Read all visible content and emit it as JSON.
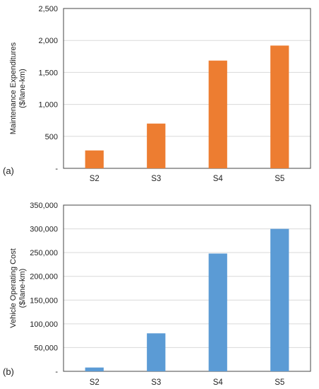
{
  "chart_data": [
    {
      "type": "bar",
      "panel_label": "(a)",
      "categories": [
        "S2",
        "S3",
        "S4",
        "S5"
      ],
      "values": [
        280,
        700,
        1685,
        1920
      ],
      "ylabel_line1": "Maintenance Expenditures",
      "ylabel_line2": "($/lane-km)",
      "ylim": [
        0,
        2500
      ],
      "yticks": [
        0,
        500,
        1000,
        1500,
        2000,
        2500
      ],
      "ytick_labels": [
        "-",
        "500",
        "1,000",
        "1,500",
        "2,000",
        "2,500"
      ],
      "grid": true,
      "bar_color": "#ED7D31"
    },
    {
      "type": "bar",
      "panel_label": "(b)",
      "categories": [
        "S2",
        "S3",
        "S4",
        "S5"
      ],
      "values": [
        8000,
        80000,
        248000,
        300000
      ],
      "ylabel_line1": "Vehicle Operating Cost",
      "ylabel_line2": "($/lane-km)",
      "ylim": [
        0,
        350000
      ],
      "yticks": [
        0,
        50000,
        100000,
        150000,
        200000,
        250000,
        300000,
        350000
      ],
      "ytick_labels": [
        "-",
        "50,000",
        "100,000",
        "150,000",
        "200,000",
        "250,000",
        "300,000",
        "350,000"
      ],
      "grid": true,
      "bar_color": "#5B9BD5"
    }
  ]
}
